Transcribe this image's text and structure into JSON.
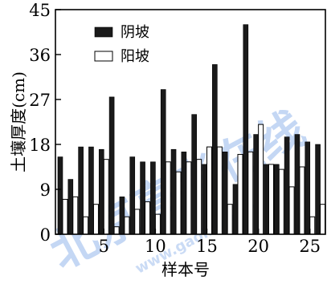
{
  "chart_data": {
    "type": "bar",
    "title": "",
    "xlabel": "样本号",
    "ylabel": "土壤厚度(cm)",
    "x": [
      1,
      2,
      3,
      4,
      5,
      6,
      7,
      8,
      9,
      10,
      11,
      12,
      13,
      14,
      15,
      16,
      17,
      18,
      19,
      20,
      21,
      22,
      23,
      24,
      25,
      26
    ],
    "xticks": [
      "5",
      "10",
      "15",
      "20",
      "25"
    ],
    "yticks": [
      "0",
      "9",
      "18",
      "27",
      "36",
      "45"
    ],
    "ylim": [
      0,
      45
    ],
    "xlim": [
      0.3,
      26.5
    ],
    "grid": false,
    "legend_position": "top-left",
    "series": [
      {
        "name": "阴坡",
        "color": "#1a1a1a",
        "fill": "solid",
        "values": [
          15.5,
          11.0,
          17.5,
          17.5,
          17.0,
          27.5,
          7.5,
          15.5,
          14.5,
          14.5,
          29.0,
          17.0,
          16.5,
          24.0,
          14.0,
          34.0,
          16.5,
          10.0,
          42.0,
          20.0,
          14.0,
          14.0,
          19.5,
          20.0,
          18.5,
          18.0
        ]
      },
      {
        "name": "阳坡",
        "color": "#ffffff",
        "fill": "outline",
        "values": [
          7.0,
          7.5,
          3.5,
          6.0,
          15.0,
          1.5,
          3.5,
          5.0,
          6.5,
          4.0,
          14.5,
          12.5,
          14.5,
          15.0,
          17.5,
          17.5,
          6.0,
          16.0,
          16.5,
          22.0,
          14.0,
          13.0,
          9.5,
          13.5,
          3.5,
          6.0
        ]
      }
    ]
  },
  "watermark": {
    "text": "北京高考在线",
    "subtext": "www.gaokzx.com",
    "color": "#2a6fd6"
  }
}
